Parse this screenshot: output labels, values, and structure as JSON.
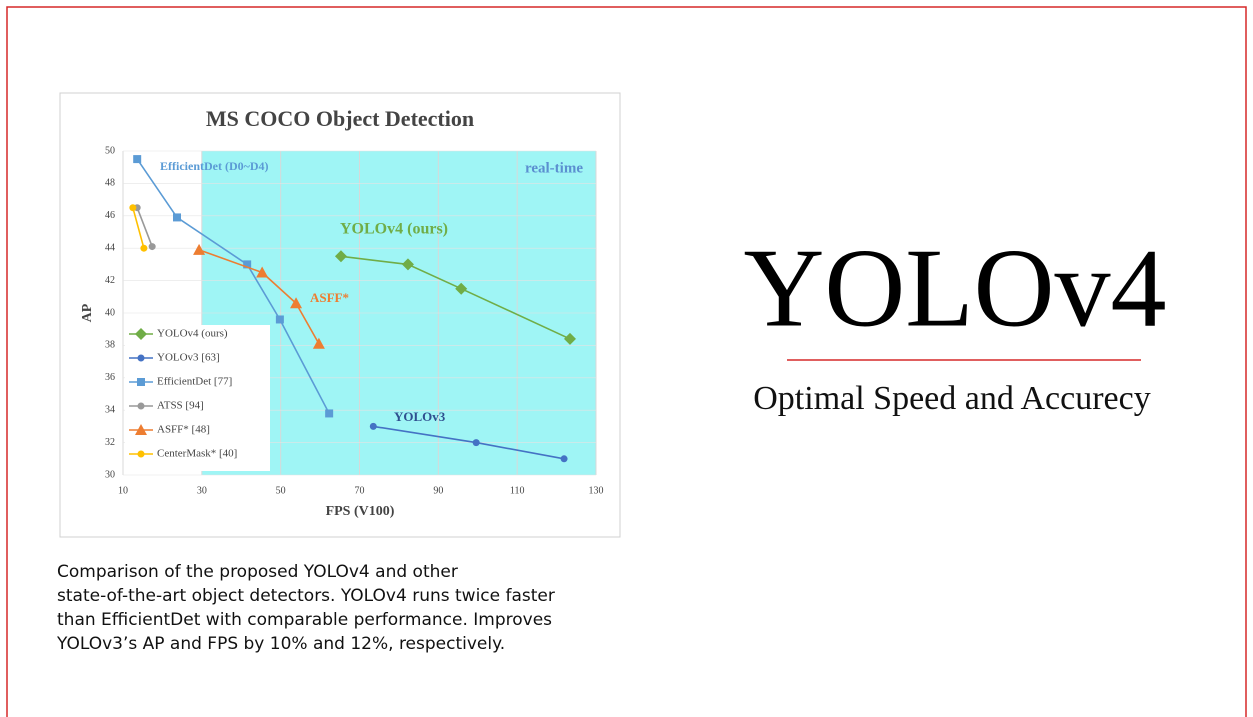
{
  "chart_data": {
    "type": "line",
    "title": "MS COCO Object Detection",
    "xlabel": "FPS (V100)",
    "ylabel": "AP",
    "xlim": [
      10,
      130
    ],
    "xticks": [
      10,
      30,
      50,
      70,
      90,
      110,
      130
    ],
    "ylim": [
      30,
      50
    ],
    "yticks": [
      30,
      32,
      34,
      36,
      38,
      40,
      42,
      44,
      46,
      48,
      50
    ],
    "grid": true,
    "legend": "lower left",
    "shaded_region": {
      "label": "real-time",
      "xlim": [
        30,
        130
      ],
      "color": "#9ff5f5"
    },
    "annotations": [
      "EfficientDet (D0~D4)",
      "YOLOv4 (ours)",
      "ASFF*",
      "YOLOv3"
    ],
    "series": [
      {
        "name": "YOLOv4 (ours)",
        "color": "#70ad47",
        "marker": "diamond",
        "x": [
          65.3,
          82.3,
          95.8,
          123.4
        ],
        "values": [
          43.5,
          43.0,
          41.5,
          38.4
        ]
      },
      {
        "name": "YOLOv3 [63]",
        "color": "#4472c4",
        "marker": "circle",
        "x": [
          73.5,
          99.6,
          121.9
        ],
        "values": [
          33.0,
          32.0,
          31.0
        ]
      },
      {
        "name": "EfficientDet [77]",
        "color": "#5b9bd5",
        "marker": "square",
        "x": [
          13.6,
          23.7,
          41.5,
          49.8,
          62.3
        ],
        "values": [
          49.5,
          45.9,
          43.0,
          39.6,
          33.8
        ]
      },
      {
        "name": "ATSS [94]",
        "color": "#999999",
        "marker": "circle",
        "x": [
          13.6,
          17.4
        ],
        "values": [
          46.5,
          44.1
        ]
      },
      {
        "name": "ASFF* [48]",
        "color": "#ed7d31",
        "marker": "triangle",
        "x": [
          29.3,
          45.3,
          53.9,
          59.7
        ],
        "values": [
          43.9,
          42.5,
          40.6,
          38.1
        ]
      },
      {
        "name": "CenterMask* [40]",
        "color": "#ffc000",
        "marker": "circle",
        "x": [
          12.5,
          15.3
        ],
        "values": [
          46.5,
          44.0
        ]
      }
    ]
  },
  "slide": {
    "heading": "YOLOv4",
    "subheading": "Optimal Speed and Accurecy",
    "caption": [
      "Comparison of the proposed YOLOv4 and other",
      "state-of-the-art object detectors. YOLOv4 runs twice faster",
      "than EfficientDet with comparable performance. Improves",
      "YOLOv3’s AP and FPS by 10% and 12%, respectively."
    ]
  }
}
